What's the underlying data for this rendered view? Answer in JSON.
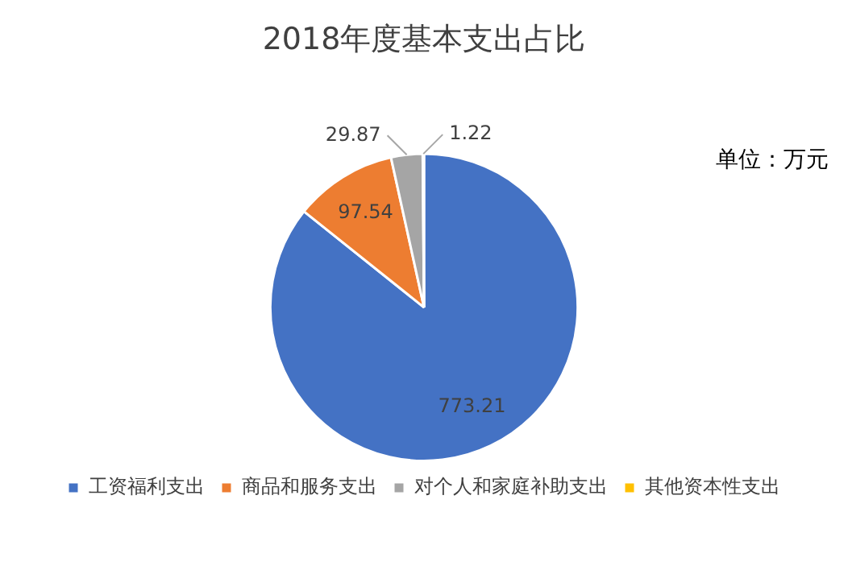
{
  "chart_data": {
    "type": "pie",
    "title": "2018年度基本支出占比",
    "categories": [
      "工资福利支出",
      "商品和服务支出",
      "对个人和家庭补助支出",
      "其他资本性支出"
    ],
    "values": [
      773.21,
      97.54,
      29.87,
      1.22
    ],
    "colors": [
      "#4472c4",
      "#ed7d31",
      "#a5a5a5",
      "#ffc000"
    ],
    "data_labels": true,
    "legend": "bottom",
    "annotations": [
      "单位：万元"
    ]
  }
}
